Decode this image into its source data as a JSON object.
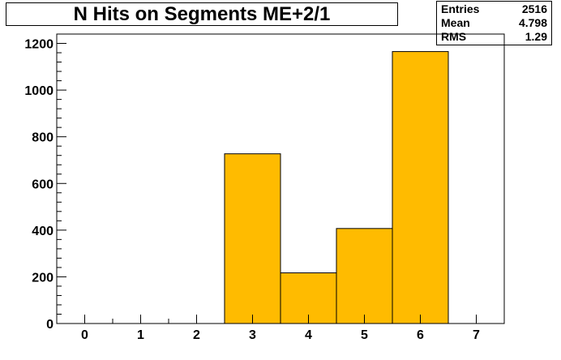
{
  "title": "N Hits on Segments ME+2/1",
  "stats": [
    {
      "label": "Entries",
      "value": "2516"
    },
    {
      "label": "Mean",
      "value": "4.798"
    },
    {
      "label": "RMS",
      "value": "1.29"
    }
  ],
  "colors": {
    "bar_fill": "#FFBB00",
    "bar_stroke": "#000000",
    "axis": "#000000"
  },
  "chart_data": {
    "type": "bar",
    "title": "N Hits on Segments ME+2/1",
    "xlabel": "",
    "ylabel": "",
    "xlim": [
      -0.5,
      7.5
    ],
    "ylim": [
      0,
      1240
    ],
    "x_ticks": [
      "0",
      "1",
      "2",
      "3",
      "4",
      "5",
      "6",
      "7"
    ],
    "y_ticks": [
      "0",
      "200",
      "400",
      "600",
      "800",
      "1000",
      "1200"
    ],
    "bins": [
      {
        "x": 3,
        "value": 727
      },
      {
        "x": 4,
        "value": 217
      },
      {
        "x": 5,
        "value": 407
      },
      {
        "x": 6,
        "value": 1165
      }
    ],
    "grid": false
  }
}
